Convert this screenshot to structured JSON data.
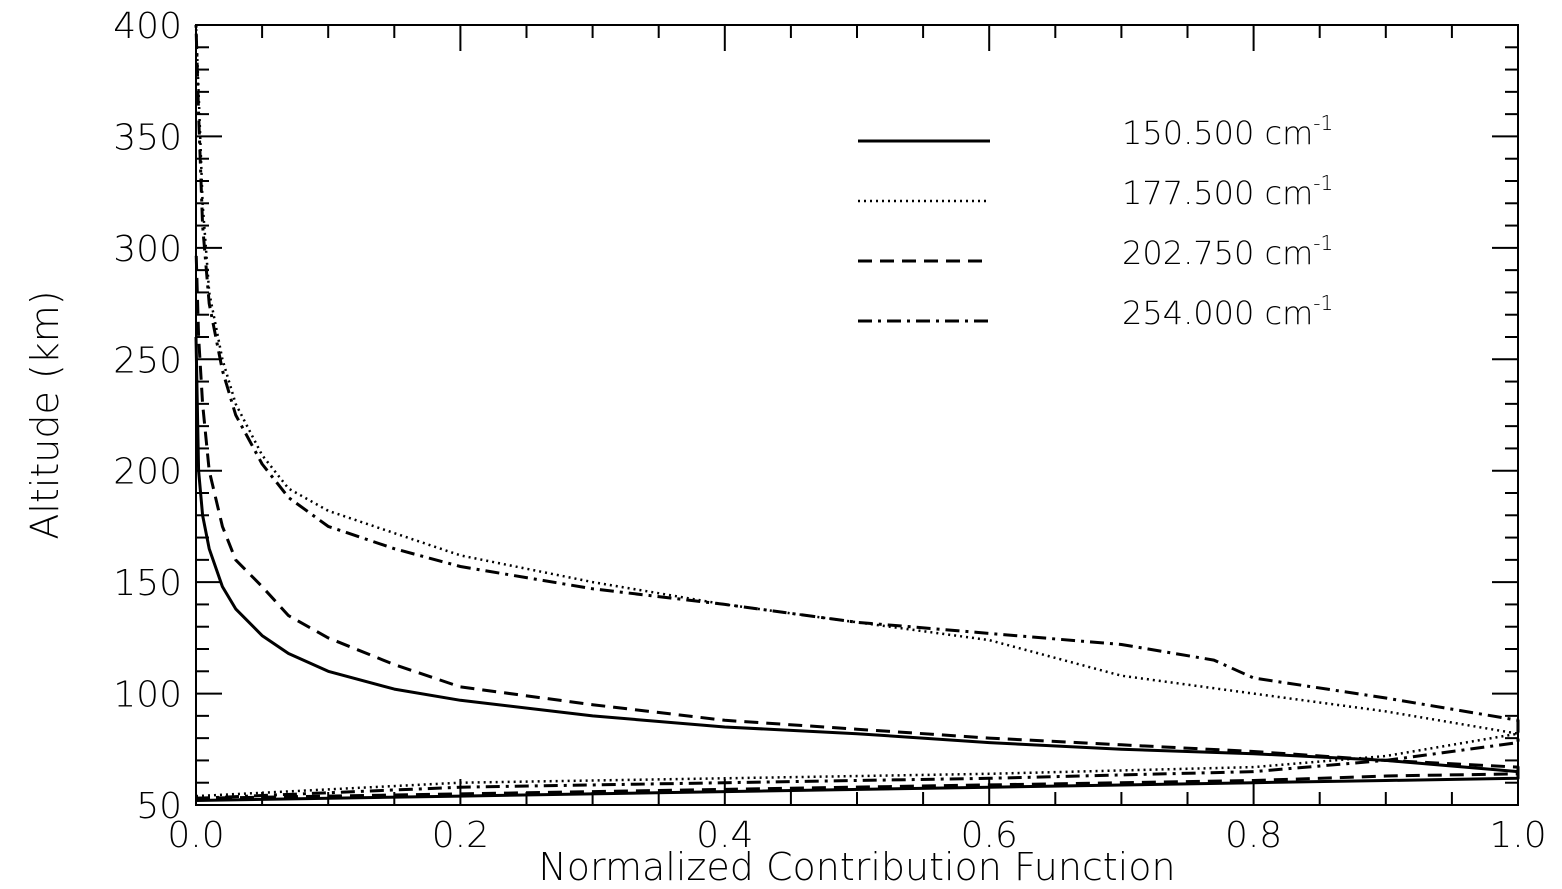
{
  "chart_data": {
    "type": "line",
    "title": "",
    "xlabel": "Normalized Contribution Function",
    "ylabel": "Altitude (km)",
    "xlim": [
      0.0,
      1.0
    ],
    "ylim": [
      50,
      400
    ],
    "x_ticks": [
      "0.0",
      "0.2",
      "0.4",
      "0.6",
      "0.8",
      "1.0"
    ],
    "y_ticks": [
      "50",
      "100",
      "150",
      "200",
      "250",
      "300",
      "350",
      "400"
    ],
    "legend_position": "top-right",
    "grid": false,
    "series": [
      {
        "name": "150.500 cm",
        "superscript": "-1",
        "style": "solid",
        "points": [
          [
            0.0,
            52
          ],
          [
            0.2,
            54
          ],
          [
            0.4,
            56
          ],
          [
            0.6,
            58
          ],
          [
            0.8,
            60
          ],
          [
            0.9,
            61
          ],
          [
            1.0,
            62
          ],
          [
            1.0,
            65
          ],
          [
            0.9,
            70
          ],
          [
            0.8,
            73
          ],
          [
            0.7,
            75
          ],
          [
            0.6,
            78
          ],
          [
            0.5,
            82
          ],
          [
            0.4,
            85
          ],
          [
            0.3,
            90
          ],
          [
            0.2,
            97
          ],
          [
            0.15,
            102
          ],
          [
            0.1,
            110
          ],
          [
            0.07,
            118
          ],
          [
            0.05,
            126
          ],
          [
            0.03,
            138
          ],
          [
            0.02,
            148
          ],
          [
            0.01,
            165
          ],
          [
            0.005,
            180
          ],
          [
            0.002,
            200
          ],
          [
            0.001,
            230
          ],
          [
            0.0,
            260
          ]
        ]
      },
      {
        "name": "177.500 cm",
        "superscript": "-1",
        "style": "dotted",
        "points": [
          [
            0.0,
            54
          ],
          [
            0.1,
            57
          ],
          [
            0.2,
            60
          ],
          [
            0.4,
            62
          ],
          [
            0.6,
            64
          ],
          [
            0.8,
            67
          ],
          [
            0.9,
            72
          ],
          [
            1.0,
            82
          ],
          [
            0.9,
            92
          ],
          [
            0.8,
            100
          ],
          [
            0.7,
            108
          ],
          [
            0.6,
            124
          ],
          [
            0.5,
            132
          ],
          [
            0.4,
            140
          ],
          [
            0.3,
            150
          ],
          [
            0.2,
            162
          ],
          [
            0.15,
            172
          ],
          [
            0.1,
            182
          ],
          [
            0.07,
            192
          ],
          [
            0.05,
            207
          ],
          [
            0.03,
            230
          ],
          [
            0.02,
            250
          ],
          [
            0.01,
            280
          ],
          [
            0.005,
            320
          ],
          [
            0.002,
            370
          ],
          [
            0.0,
            400
          ]
        ]
      },
      {
        "name": "202.750 cm",
        "superscript": "-1",
        "style": "dashed",
        "points": [
          [
            0.0,
            53
          ],
          [
            0.2,
            55
          ],
          [
            0.4,
            57
          ],
          [
            0.6,
            59
          ],
          [
            0.8,
            61
          ],
          [
            0.9,
            63
          ],
          [
            1.0,
            64
          ],
          [
            1.0,
            67
          ],
          [
            0.9,
            70
          ],
          [
            0.8,
            74
          ],
          [
            0.7,
            77
          ],
          [
            0.6,
            80
          ],
          [
            0.5,
            84
          ],
          [
            0.4,
            88
          ],
          [
            0.3,
            95
          ],
          [
            0.2,
            103
          ],
          [
            0.15,
            113
          ],
          [
            0.1,
            125
          ],
          [
            0.07,
            135
          ],
          [
            0.05,
            148
          ],
          [
            0.03,
            160
          ],
          [
            0.02,
            175
          ],
          [
            0.01,
            200
          ],
          [
            0.005,
            230
          ],
          [
            0.002,
            260
          ],
          [
            0.0,
            300
          ]
        ]
      },
      {
        "name": "254.000 cm",
        "superscript": "-1",
        "style": "dashdot",
        "points": [
          [
            0.0,
            53
          ],
          [
            0.2,
            58
          ],
          [
            0.4,
            60
          ],
          [
            0.6,
            62
          ],
          [
            0.8,
            65
          ],
          [
            0.9,
            70
          ],
          [
            1.0,
            78
          ],
          [
            1.0,
            88
          ],
          [
            0.9,
            98
          ],
          [
            0.8,
            107
          ],
          [
            0.77,
            115
          ],
          [
            0.7,
            122
          ],
          [
            0.6,
            127
          ],
          [
            0.5,
            132
          ],
          [
            0.4,
            140
          ],
          [
            0.3,
            147
          ],
          [
            0.2,
            157
          ],
          [
            0.15,
            165
          ],
          [
            0.1,
            175
          ],
          [
            0.07,
            188
          ],
          [
            0.05,
            203
          ],
          [
            0.03,
            225
          ],
          [
            0.02,
            245
          ],
          [
            0.01,
            275
          ],
          [
            0.005,
            310
          ],
          [
            0.002,
            360
          ],
          [
            0.0,
            400
          ]
        ]
      }
    ]
  }
}
